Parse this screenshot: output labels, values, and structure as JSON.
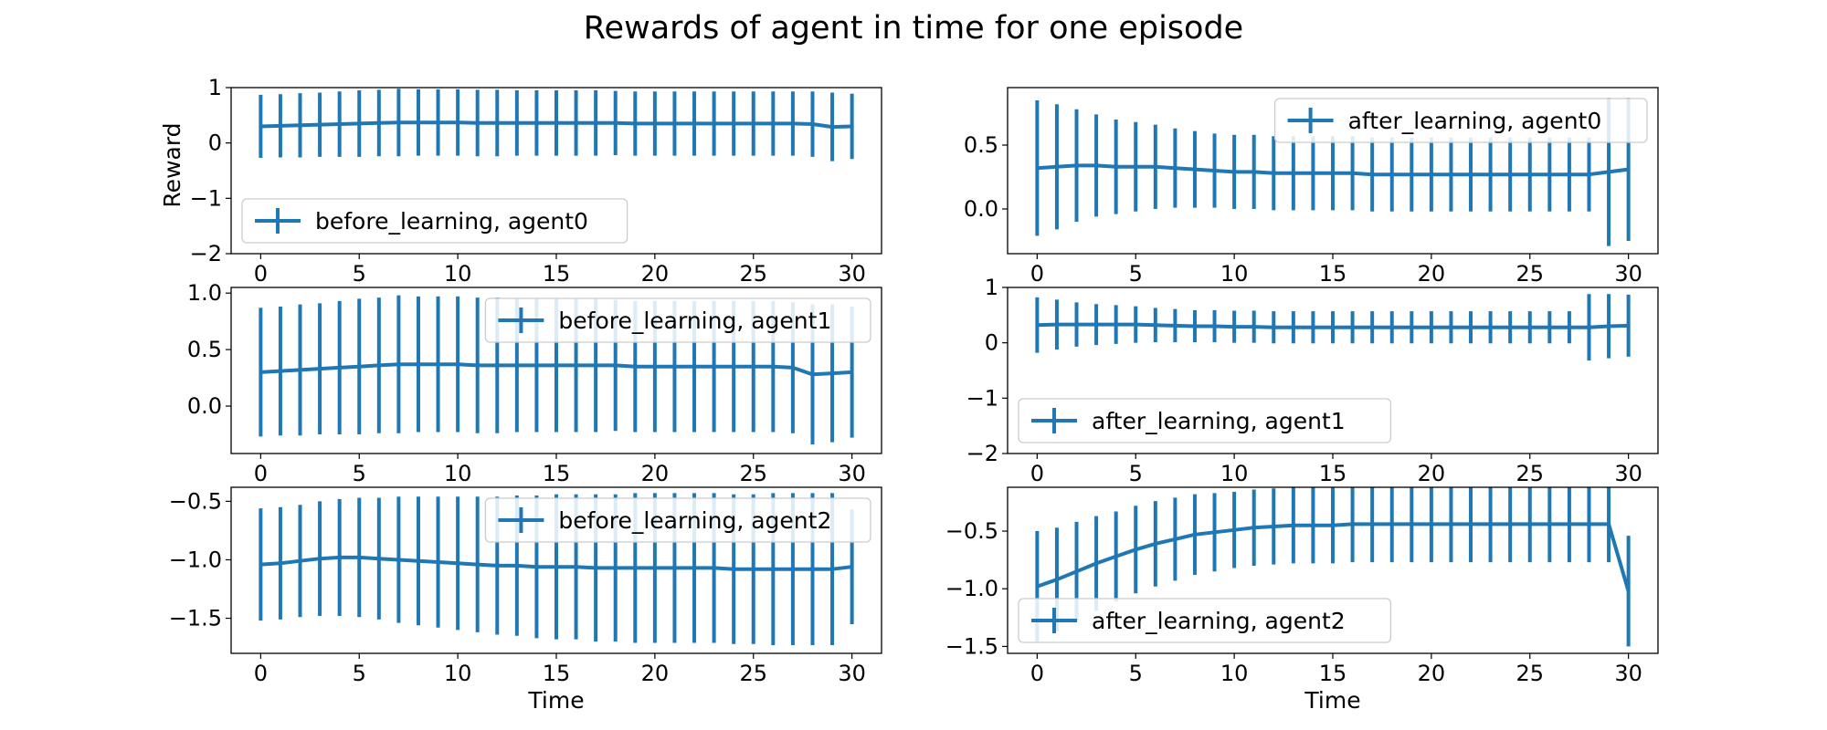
{
  "figure": {
    "title": "Rewards of agent in time for one episode",
    "series_color": "#1f77b4"
  },
  "chart_data": [
    {
      "type": "line",
      "error_bars": true,
      "legend": "before_learning, agent0",
      "legend_position": "lower-left",
      "xlabel": "",
      "ylabel": "Reward",
      "xlim": [
        -1.5,
        31.5
      ],
      "ylim": [
        -2,
        1
      ],
      "xticks": [
        0,
        5,
        10,
        15,
        20,
        25,
        30
      ],
      "yticks": [
        -2,
        -1,
        0,
        1
      ],
      "ytick_labels": [
        "−2",
        "−1",
        "0",
        "1"
      ],
      "x": [
        0,
        1,
        2,
        3,
        4,
        5,
        6,
        7,
        8,
        9,
        10,
        11,
        12,
        13,
        14,
        15,
        16,
        17,
        18,
        19,
        20,
        21,
        22,
        23,
        24,
        25,
        26,
        27,
        28,
        29,
        30
      ],
      "y": [
        0.3,
        0.31,
        0.32,
        0.33,
        0.34,
        0.35,
        0.36,
        0.37,
        0.37,
        0.37,
        0.37,
        0.36,
        0.36,
        0.36,
        0.36,
        0.36,
        0.36,
        0.36,
        0.36,
        0.35,
        0.35,
        0.35,
        0.35,
        0.35,
        0.35,
        0.35,
        0.35,
        0.35,
        0.34,
        0.29,
        0.3
      ],
      "err": [
        0.57,
        0.57,
        0.58,
        0.58,
        0.59,
        0.6,
        0.6,
        0.61,
        0.6,
        0.6,
        0.6,
        0.6,
        0.6,
        0.59,
        0.59,
        0.59,
        0.59,
        0.59,
        0.58,
        0.58,
        0.58,
        0.58,
        0.58,
        0.58,
        0.58,
        0.58,
        0.58,
        0.58,
        0.59,
        0.62,
        0.59
      ]
    },
    {
      "type": "line",
      "error_bars": true,
      "legend": "after_learning, agent0",
      "legend_position": "upper-right",
      "xlabel": "",
      "ylabel": "",
      "xlim": [
        -1.5,
        31.5
      ],
      "ylim": [
        -0.35,
        0.95
      ],
      "xticks": [
        0,
        5,
        10,
        15,
        20,
        25,
        30
      ],
      "yticks": [
        0.0,
        0.5
      ],
      "ytick_labels": [
        "0.0",
        "0.5"
      ],
      "x": [
        0,
        1,
        2,
        3,
        4,
        5,
        6,
        7,
        8,
        9,
        10,
        11,
        12,
        13,
        14,
        15,
        16,
        17,
        18,
        19,
        20,
        21,
        22,
        23,
        24,
        25,
        26,
        27,
        28,
        29,
        30
      ],
      "y": [
        0.32,
        0.33,
        0.34,
        0.34,
        0.33,
        0.33,
        0.33,
        0.32,
        0.31,
        0.3,
        0.29,
        0.29,
        0.28,
        0.28,
        0.28,
        0.28,
        0.28,
        0.27,
        0.27,
        0.27,
        0.27,
        0.27,
        0.27,
        0.27,
        0.27,
        0.27,
        0.27,
        0.27,
        0.27,
        0.29,
        0.31
      ],
      "err": [
        0.53,
        0.49,
        0.44,
        0.4,
        0.37,
        0.35,
        0.33,
        0.31,
        0.3,
        0.29,
        0.29,
        0.29,
        0.29,
        0.29,
        0.29,
        0.29,
        0.29,
        0.29,
        0.29,
        0.29,
        0.29,
        0.29,
        0.29,
        0.29,
        0.29,
        0.29,
        0.29,
        0.29,
        0.29,
        0.58,
        0.56
      ]
    },
    {
      "type": "line",
      "error_bars": true,
      "legend": "before_learning, agent1",
      "legend_position": "upper-right",
      "xlabel": "",
      "ylabel": "",
      "xlim": [
        -1.5,
        31.5
      ],
      "ylim": [
        -0.42,
        1.05
      ],
      "xticks": [
        0,
        5,
        10,
        15,
        20,
        25,
        30
      ],
      "yticks": [
        0.0,
        0.5,
        1.0
      ],
      "ytick_labels": [
        "0.0",
        "0.5",
        "1.0"
      ],
      "x": [
        0,
        1,
        2,
        3,
        4,
        5,
        6,
        7,
        8,
        9,
        10,
        11,
        12,
        13,
        14,
        15,
        16,
        17,
        18,
        19,
        20,
        21,
        22,
        23,
        24,
        25,
        26,
        27,
        28,
        29,
        30
      ],
      "y": [
        0.3,
        0.31,
        0.32,
        0.33,
        0.34,
        0.35,
        0.36,
        0.37,
        0.37,
        0.37,
        0.37,
        0.36,
        0.36,
        0.36,
        0.36,
        0.36,
        0.36,
        0.36,
        0.36,
        0.35,
        0.35,
        0.35,
        0.35,
        0.35,
        0.35,
        0.35,
        0.35,
        0.34,
        0.28,
        0.29,
        0.3
      ],
      "err": [
        0.57,
        0.57,
        0.58,
        0.58,
        0.59,
        0.6,
        0.6,
        0.61,
        0.6,
        0.6,
        0.6,
        0.6,
        0.6,
        0.59,
        0.59,
        0.59,
        0.59,
        0.59,
        0.58,
        0.58,
        0.58,
        0.58,
        0.58,
        0.58,
        0.58,
        0.58,
        0.58,
        0.58,
        0.62,
        0.61,
        0.58
      ]
    },
    {
      "type": "line",
      "error_bars": true,
      "legend": "after_learning, agent1",
      "legend_position": "lower-left",
      "xlabel": "",
      "ylabel": "",
      "xlim": [
        -1.5,
        31.5
      ],
      "ylim": [
        -2,
        1
      ],
      "xticks": [
        0,
        5,
        10,
        15,
        20,
        25,
        30
      ],
      "yticks": [
        -2,
        -1,
        0,
        1
      ],
      "ytick_labels": [
        "−2",
        "−1",
        "0",
        "1"
      ],
      "x": [
        0,
        1,
        2,
        3,
        4,
        5,
        6,
        7,
        8,
        9,
        10,
        11,
        12,
        13,
        14,
        15,
        16,
        17,
        18,
        19,
        20,
        21,
        22,
        23,
        24,
        25,
        26,
        27,
        28,
        29,
        30
      ],
      "y": [
        0.32,
        0.33,
        0.33,
        0.33,
        0.33,
        0.33,
        0.32,
        0.31,
        0.3,
        0.3,
        0.29,
        0.29,
        0.28,
        0.28,
        0.28,
        0.28,
        0.28,
        0.28,
        0.28,
        0.28,
        0.28,
        0.28,
        0.28,
        0.28,
        0.28,
        0.28,
        0.28,
        0.28,
        0.28,
        0.3,
        0.31
      ],
      "err": [
        0.5,
        0.45,
        0.4,
        0.37,
        0.35,
        0.33,
        0.31,
        0.3,
        0.29,
        0.29,
        0.29,
        0.29,
        0.29,
        0.29,
        0.29,
        0.29,
        0.29,
        0.29,
        0.29,
        0.29,
        0.29,
        0.29,
        0.29,
        0.29,
        0.29,
        0.29,
        0.29,
        0.29,
        0.6,
        0.58,
        0.56
      ]
    },
    {
      "type": "line",
      "error_bars": true,
      "legend": "before_learning, agent2",
      "legend_position": "upper-right",
      "xlabel": "Time",
      "ylabel": "",
      "xlim": [
        -1.5,
        31.5
      ],
      "ylim": [
        -1.8,
        -0.38
      ],
      "xticks": [
        0,
        5,
        10,
        15,
        20,
        25,
        30
      ],
      "yticks": [
        -1.5,
        -1.0,
        -0.5
      ],
      "ytick_labels": [
        "−1.5",
        "−1.0",
        "−0.5"
      ],
      "x": [
        0,
        1,
        2,
        3,
        4,
        5,
        6,
        7,
        8,
        9,
        10,
        11,
        12,
        13,
        14,
        15,
        16,
        17,
        18,
        19,
        20,
        21,
        22,
        23,
        24,
        25,
        26,
        27,
        28,
        29,
        30
      ],
      "y": [
        -1.04,
        -1.03,
        -1.01,
        -0.99,
        -0.98,
        -0.98,
        -0.99,
        -1.0,
        -1.01,
        -1.02,
        -1.03,
        -1.04,
        -1.05,
        -1.05,
        -1.06,
        -1.06,
        -1.06,
        -1.07,
        -1.07,
        -1.07,
        -1.07,
        -1.07,
        -1.07,
        -1.07,
        -1.08,
        -1.08,
        -1.08,
        -1.08,
        -1.08,
        -1.08,
        -1.06
      ],
      "err": [
        0.48,
        0.48,
        0.48,
        0.49,
        0.5,
        0.51,
        0.52,
        0.54,
        0.55,
        0.56,
        0.57,
        0.58,
        0.59,
        0.6,
        0.61,
        0.62,
        0.62,
        0.63,
        0.63,
        0.64,
        0.64,
        0.64,
        0.64,
        0.64,
        0.64,
        0.64,
        0.65,
        0.65,
        0.65,
        0.65,
        0.49
      ]
    },
    {
      "type": "line",
      "error_bars": true,
      "legend": "after_learning, agent2",
      "legend_position": "lower-left",
      "xlabel": "Time",
      "ylabel": "",
      "xlim": [
        -1.5,
        31.5
      ],
      "ylim": [
        -1.56,
        -0.12
      ],
      "xticks": [
        0,
        5,
        10,
        15,
        20,
        25,
        30
      ],
      "yticks": [
        -1.5,
        -1.0,
        -0.5
      ],
      "ytick_labels": [
        "−1.5",
        "−1.0",
        "−0.5"
      ],
      "x": [
        0,
        1,
        2,
        3,
        4,
        5,
        6,
        7,
        8,
        9,
        10,
        11,
        12,
        13,
        14,
        15,
        16,
        17,
        18,
        19,
        20,
        21,
        22,
        23,
        24,
        25,
        26,
        27,
        28,
        29,
        30
      ],
      "y": [
        -0.98,
        -0.92,
        -0.85,
        -0.78,
        -0.72,
        -0.66,
        -0.61,
        -0.57,
        -0.53,
        -0.51,
        -0.49,
        -0.47,
        -0.46,
        -0.45,
        -0.45,
        -0.45,
        -0.44,
        -0.44,
        -0.44,
        -0.44,
        -0.44,
        -0.44,
        -0.44,
        -0.44,
        -0.44,
        -0.44,
        -0.44,
        -0.44,
        -0.44,
        -0.44,
        -1.02
      ],
      "err": [
        0.48,
        0.45,
        0.43,
        0.41,
        0.39,
        0.38,
        0.37,
        0.36,
        0.35,
        0.34,
        0.33,
        0.33,
        0.33,
        0.33,
        0.33,
        0.33,
        0.33,
        0.33,
        0.33,
        0.33,
        0.33,
        0.33,
        0.33,
        0.33,
        0.33,
        0.33,
        0.33,
        0.33,
        0.33,
        0.33,
        0.48
      ]
    }
  ]
}
